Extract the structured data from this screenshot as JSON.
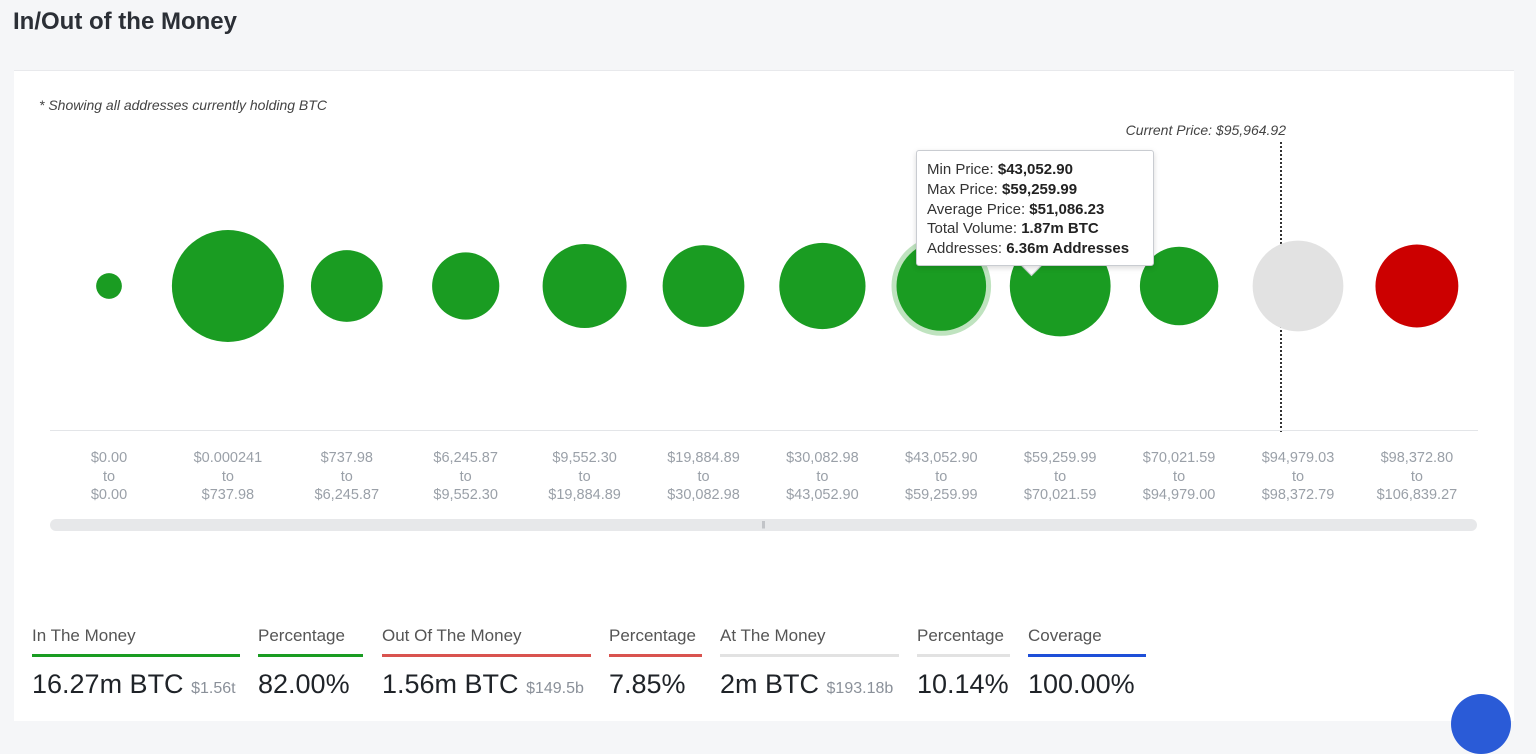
{
  "page": {
    "title": "In/Out of the Money",
    "note": "* Showing all addresses currently holding BTC",
    "current_price": "Current Price: $95,964.92"
  },
  "colors": {
    "in_the_money": "#1a9c22",
    "out_of_the_money": "#cc0000",
    "at_the_money": "#e2e2e2",
    "coverage": "#1e4fd8",
    "in_bar": "#1a9c22",
    "out_bar": "#d9534f",
    "at_bar": "#e2e2e2"
  },
  "chart_data": {
    "type": "scatter",
    "ranges": [
      {
        "from": "$0.00",
        "to": "$0.00",
        "status": "in"
      },
      {
        "from": "$0.000241",
        "to": "$737.98",
        "status": "in"
      },
      {
        "from": "$737.98",
        "to": "$6,245.87",
        "status": "in"
      },
      {
        "from": "$6,245.87",
        "to": "$9,552.30",
        "status": "in"
      },
      {
        "from": "$9,552.30",
        "to": "$19,884.89",
        "status": "in"
      },
      {
        "from": "$19,884.89",
        "to": "$30,082.98",
        "status": "in"
      },
      {
        "from": "$30,082.98",
        "to": "$43,052.90",
        "status": "in"
      },
      {
        "from": "$43,052.90",
        "to": "$59,259.99",
        "status": "in",
        "highlighted": true
      },
      {
        "from": "$59,259.99",
        "to": "$70,021.59",
        "status": "in"
      },
      {
        "from": "$70,021.59",
        "to": "$94,979.00",
        "status": "in"
      },
      {
        "from": "$94,979.03",
        "to": "$98,372.79",
        "status": "at"
      },
      {
        "from": "$98,372.80",
        "to": "$106,839.27",
        "status": "out"
      }
    ],
    "relative_size": [
      0.23,
      1.0,
      0.64,
      0.6,
      0.75,
      0.73,
      0.77,
      0.8,
      0.9,
      0.7,
      0.81,
      0.74
    ]
  },
  "tooltip": {
    "min_label": "Min Price: ",
    "min_value": "$43,052.90",
    "max_label": "Max Price: ",
    "max_value": "$59,259.99",
    "avg_label": "Average Price: ",
    "avg_value": "$51,086.23",
    "vol_label": "Total Volume: ",
    "vol_value": "1.87m BTC",
    "addr_label": "Addresses: ",
    "addr_value": "6.36m Addresses"
  },
  "scrollbar": {
    "grip": "|||"
  },
  "stats": [
    {
      "label": "In The Money",
      "value": "16.27m BTC",
      "sub": "$1.56t"
    },
    {
      "label": "Percentage",
      "value": "82.00%",
      "sub": ""
    },
    {
      "label": "Out Of The Money",
      "value": "1.56m BTC",
      "sub": "$149.5b"
    },
    {
      "label": "Percentage",
      "value": "7.85%",
      "sub": ""
    },
    {
      "label": "At The Money",
      "value": "2m BTC",
      "sub": "$193.18b"
    },
    {
      "label": "Percentage",
      "value": "10.14%",
      "sub": ""
    },
    {
      "label": "Coverage",
      "value": "100.00%",
      "sub": ""
    }
  ]
}
